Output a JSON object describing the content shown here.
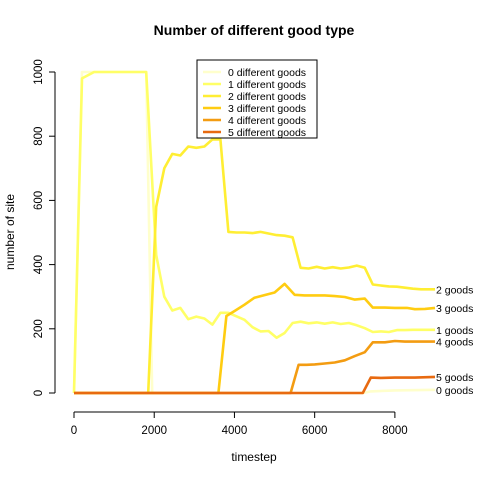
{
  "chart_data": {
    "type": "line",
    "title": "Number of different good type",
    "xlabel": "timestep",
    "ylabel": "number of site",
    "xlim": [
      0,
      9000
    ],
    "ylim": [
      0,
      1000
    ],
    "x_ticks": [
      0,
      2000,
      4000,
      6000,
      8000
    ],
    "y_ticks": [
      0,
      200,
      400,
      600,
      800,
      1000
    ],
    "grid": false,
    "legend_position": "top-center",
    "series": [
      {
        "name": "0 different goods",
        "end_label": "0 goods",
        "color": "#FFFFCC",
        "points": [
          [
            0,
            0
          ],
          [
            200,
            1000
          ],
          [
            1800,
            1000
          ],
          [
            1950,
            0
          ],
          [
            7200,
            0
          ],
          [
            7400,
            5
          ],
          [
            8000,
            8
          ],
          [
            9000,
            10
          ]
        ]
      },
      {
        "name": "1 different goods",
        "end_label": "1 goods",
        "color": "#FFFF66",
        "points": [
          [
            0,
            0
          ],
          [
            200,
            980
          ],
          [
            500,
            1000
          ],
          [
            1800,
            1000
          ],
          [
            2050,
            430
          ],
          [
            2250,
            300
          ],
          [
            2450,
            257
          ],
          [
            2650,
            265
          ],
          [
            2850,
            230
          ],
          [
            3050,
            238
          ],
          [
            3250,
            232
          ],
          [
            3450,
            213
          ],
          [
            3650,
            250
          ],
          [
            3850,
            250
          ],
          [
            4250,
            228
          ],
          [
            4450,
            205
          ],
          [
            4650,
            192
          ],
          [
            4850,
            193
          ],
          [
            5050,
            172
          ],
          [
            5250,
            187
          ],
          [
            5450,
            218
          ],
          [
            5650,
            222
          ],
          [
            5850,
            217
          ],
          [
            6050,
            220
          ],
          [
            6250,
            216
          ],
          [
            6450,
            220
          ],
          [
            6650,
            215
          ],
          [
            6850,
            218
          ],
          [
            7050,
            211
          ],
          [
            7250,
            202
          ],
          [
            7450,
            190
          ],
          [
            7650,
            192
          ],
          [
            7850,
            190
          ],
          [
            8050,
            196
          ],
          [
            8250,
            196
          ],
          [
            8450,
            197
          ],
          [
            9000,
            197
          ]
        ]
      },
      {
        "name": "2 different goods",
        "end_label": "2 goods",
        "color": "#FFEE33",
        "points": [
          [
            0,
            0
          ],
          [
            1850,
            0
          ],
          [
            2050,
            580
          ],
          [
            2250,
            700
          ],
          [
            2450,
            745
          ],
          [
            2650,
            740
          ],
          [
            2850,
            768
          ],
          [
            3050,
            764
          ],
          [
            3250,
            768
          ],
          [
            3450,
            790
          ],
          [
            3650,
            790
          ],
          [
            3850,
            502
          ],
          [
            4050,
            500
          ],
          [
            4250,
            500
          ],
          [
            4450,
            498
          ],
          [
            4650,
            502
          ],
          [
            4850,
            497
          ],
          [
            5050,
            492
          ],
          [
            5250,
            490
          ],
          [
            5450,
            485
          ],
          [
            5650,
            390
          ],
          [
            5850,
            388
          ],
          [
            6050,
            393
          ],
          [
            6250,
            388
          ],
          [
            6450,
            392
          ],
          [
            6650,
            388
          ],
          [
            6850,
            391
          ],
          [
            7050,
            397
          ],
          [
            7250,
            390
          ],
          [
            7450,
            338
          ],
          [
            7650,
            335
          ],
          [
            7850,
            332
          ],
          [
            8050,
            331
          ],
          [
            8250,
            328
          ],
          [
            8450,
            325
          ],
          [
            8650,
            323
          ],
          [
            9000,
            323
          ]
        ]
      },
      {
        "name": "3 different goods",
        "end_label": "3 goods",
        "color": "#FFCC11",
        "points": [
          [
            0,
            0
          ],
          [
            3600,
            0
          ],
          [
            3800,
            240
          ],
          [
            4000,
            255
          ],
          [
            4250,
            275
          ],
          [
            4500,
            297
          ],
          [
            4750,
            305
          ],
          [
            5000,
            313
          ],
          [
            5250,
            340
          ],
          [
            5500,
            306
          ],
          [
            5750,
            304
          ],
          [
            6000,
            304
          ],
          [
            6250,
            304
          ],
          [
            6500,
            302
          ],
          [
            6750,
            299
          ],
          [
            7000,
            291
          ],
          [
            7250,
            294
          ],
          [
            7450,
            266
          ],
          [
            7750,
            266
          ],
          [
            8000,
            265
          ],
          [
            8300,
            265
          ],
          [
            8500,
            261
          ],
          [
            8750,
            262
          ],
          [
            9000,
            265
          ]
        ]
      },
      {
        "name": "4 different goods",
        "end_label": "4 goods",
        "color": "#F39C12",
        "points": [
          [
            0,
            0
          ],
          [
            5400,
            0
          ],
          [
            5600,
            88
          ],
          [
            5800,
            88
          ],
          [
            6000,
            89
          ],
          [
            6250,
            92
          ],
          [
            6500,
            95
          ],
          [
            6750,
            102
          ],
          [
            7000,
            115
          ],
          [
            7250,
            127
          ],
          [
            7450,
            158
          ],
          [
            7750,
            158
          ],
          [
            8000,
            162
          ],
          [
            8250,
            160
          ],
          [
            8500,
            160
          ],
          [
            8750,
            160
          ],
          [
            9000,
            160
          ]
        ]
      },
      {
        "name": "5 different goods",
        "end_label": "5 goods",
        "color": "#E86A10",
        "points": [
          [
            0,
            0
          ],
          [
            7200,
            0
          ],
          [
            7400,
            48
          ],
          [
            7650,
            47
          ],
          [
            8000,
            48
          ],
          [
            8500,
            48
          ],
          [
            9000,
            50
          ]
        ]
      }
    ]
  }
}
